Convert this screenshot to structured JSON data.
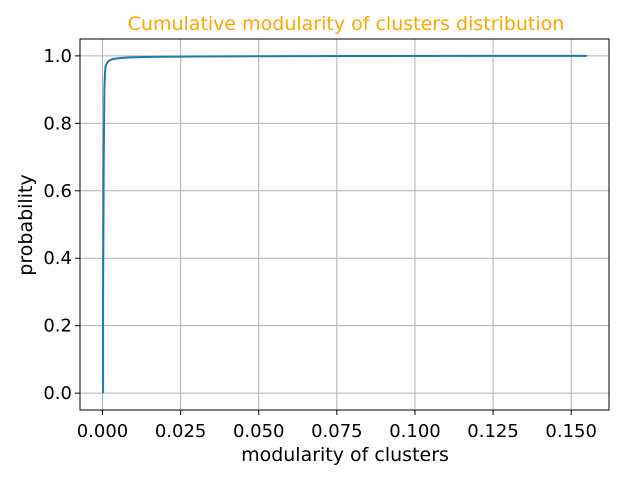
{
  "chart_data": {
    "type": "line",
    "title": "Cumulative modularity of clusters distribution",
    "title_color": "#ffa500",
    "xlabel": "modularity of clusters",
    "ylabel": "probability",
    "xlim": [
      -0.0072,
      0.1621
    ],
    "ylim": [
      -0.05,
      1.05
    ],
    "xticks": [
      0.0,
      0.025,
      0.05,
      0.075,
      0.1,
      0.125,
      0.15
    ],
    "xtick_labels": [
      "0.000",
      "0.025",
      "0.050",
      "0.075",
      "0.100",
      "0.125",
      "0.150"
    ],
    "yticks": [
      0.0,
      0.2,
      0.4,
      0.6,
      0.8,
      1.0
    ],
    "ytick_labels": [
      "0.0",
      "0.2",
      "0.4",
      "0.6",
      "0.8",
      "1.0"
    ],
    "grid": true,
    "legend": null,
    "series": [
      {
        "color": "#1f77b4",
        "x": [
          0.0002,
          0.0002,
          0.0004,
          0.0006,
          0.0008,
          0.001,
          0.0015,
          0.002,
          0.003,
          0.005,
          0.008,
          0.015,
          0.03,
          0.05,
          0.08,
          0.12,
          0.155
        ],
        "y": [
          0.0,
          0.3,
          0.7,
          0.9,
          0.95,
          0.97,
          0.98,
          0.985,
          0.99,
          0.993,
          0.995,
          0.997,
          0.998,
          0.999,
          0.9995,
          0.9998,
          1.0
        ]
      }
    ]
  }
}
